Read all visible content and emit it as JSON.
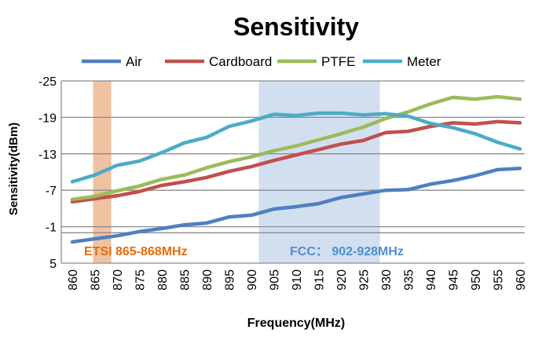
{
  "chart_data": {
    "type": "line",
    "title": "Sensitivity",
    "xlabel": "Frequency(MHz)",
    "ylabel": "Sensitivity(dBm)",
    "ylim": [
      5,
      -25
    ],
    "y_inverted": true,
    "yticks": [
      -25,
      -19,
      -13,
      -7,
      -1,
      5
    ],
    "grid": true,
    "legend_position": "top",
    "x": [
      860,
      865,
      870,
      875,
      880,
      885,
      890,
      895,
      900,
      905,
      910,
      915,
      920,
      925,
      930,
      935,
      940,
      945,
      950,
      955,
      960
    ],
    "series": [
      {
        "name": "Air",
        "color": "#4f7fc0",
        "values": [
          1.5,
          1.0,
          0.5,
          -0.2,
          -0.7,
          -1.3,
          -1.6,
          -2.6,
          -2.9,
          -3.9,
          -4.3,
          -4.8,
          -5.8,
          -6.4,
          -7.0,
          -7.1,
          -8.0,
          -8.6,
          -9.4,
          -10.4,
          -10.6
        ]
      },
      {
        "name": "Cardboard",
        "color": "#c0504d",
        "values": [
          -5.1,
          -5.6,
          -6.1,
          -6.8,
          -7.8,
          -8.4,
          -9.1,
          -10.1,
          -10.9,
          -11.9,
          -12.8,
          -13.7,
          -14.6,
          -15.2,
          -16.5,
          -16.7,
          -17.5,
          -18.1,
          -17.9,
          -18.3,
          -18.1
        ]
      },
      {
        "name": "PTFE",
        "color": "#9bbb59",
        "values": [
          -5.5,
          -6.0,
          -6.9,
          -7.7,
          -8.8,
          -9.5,
          -10.7,
          -11.7,
          -12.5,
          -13.5,
          -14.3,
          -15.3,
          -16.3,
          -17.4,
          -18.8,
          -19.9,
          -21.2,
          -22.3,
          -22.0,
          -22.4,
          -22.0
        ]
      },
      {
        "name": "Meter",
        "color": "#4bacc6",
        "values": [
          -8.4,
          -9.5,
          -11.1,
          -11.8,
          -13.2,
          -14.8,
          -15.7,
          -17.5,
          -18.4,
          -19.5,
          -19.3,
          -19.7,
          -19.7,
          -19.4,
          -19.6,
          -19.2,
          -18.0,
          -17.3,
          -16.3,
          -14.9,
          -13.8
        ]
      }
    ],
    "bands": [
      {
        "label": "ETSI 865-868MHz",
        "from": 865,
        "to": 868,
        "fill": "#eebf9c",
        "text_color": "#e46c0a"
      },
      {
        "label": "FCC： 902-928MHz",
        "from": 902,
        "to": 928,
        "fill": "#cddcf0",
        "text_color": "#4f8fd0"
      }
    ]
  }
}
